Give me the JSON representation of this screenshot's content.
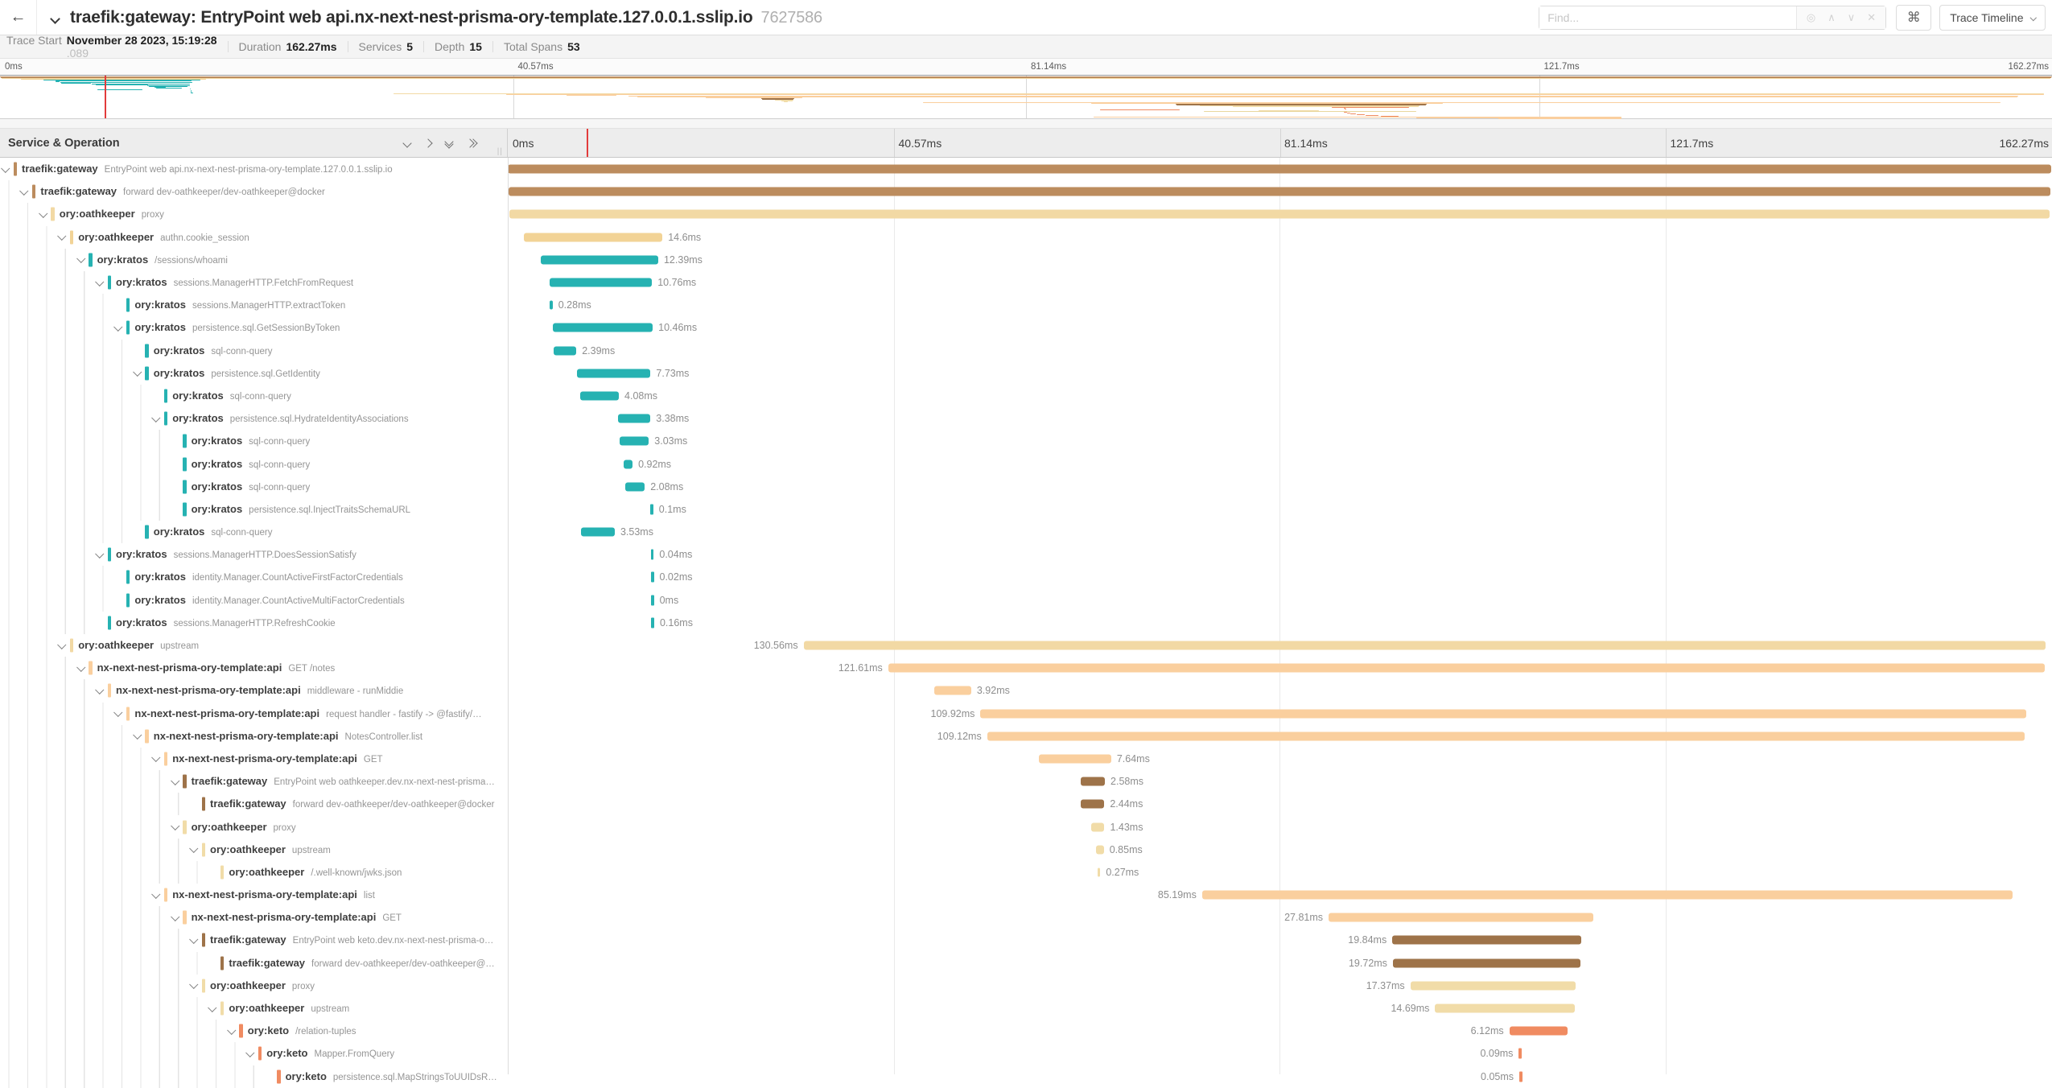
{
  "topbar": {
    "title": "traefik:gateway: EntryPoint web api.nx-next-nest-prisma-ory-template.127.0.0.1.sslip.io",
    "trace_id": "7627586",
    "find_placeholder": "Find...",
    "view_select_label": "Trace Timeline"
  },
  "icons": {
    "back": "←",
    "command": "⌘",
    "find_scope": "◎",
    "find_prev": "∧",
    "find_next": "∨",
    "find_clear": "✕"
  },
  "metabar": {
    "items": [
      {
        "label": "Trace Start",
        "value": "November 28 2023, 15:19:28",
        "suffix": ".089"
      },
      {
        "label": "Duration",
        "value": "162.27ms",
        "suffix": ""
      },
      {
        "label": "Services",
        "value": "5",
        "suffix": ""
      },
      {
        "label": "Depth",
        "value": "15",
        "suffix": ""
      },
      {
        "label": "Total Spans",
        "value": "53",
        "suffix": ""
      }
    ]
  },
  "table": {
    "header_left": "Service & Operation"
  },
  "timeline": {
    "ticks": [
      "0ms",
      "40.57ms",
      "81.14ms",
      "121.7ms",
      "162.27ms"
    ],
    "duration_ms": 162.27,
    "cursor_pct": 5.1
  },
  "colors": {
    "traefik_light": "#BC8C5E",
    "traefik_dark": "#9E7349",
    "oathkeeper": "#F1DCA8",
    "oathkeeper_deep": "#F2D396",
    "kratos": "#26B2B2",
    "api": "#FACF9E",
    "keto": "#F08B61",
    "cursor_red": "#E23B3B"
  },
  "spans": [
    {
      "service": "traefik:gateway",
      "operation": "EntryPoint web api.nx-next-nest-prisma-ory-template.127.0.0.1.sslip.io",
      "depth": 0,
      "has_children": true,
      "color": "#BC8C5E",
      "start_ms": 0,
      "duration_ms": 162.27,
      "duration_label": "",
      "label_side": "none"
    },
    {
      "service": "traefik:gateway",
      "operation": "forward dev-oathkeeper/dev-oathkeeper@docker",
      "depth": 1,
      "has_children": true,
      "color": "#BC8C5E",
      "start_ms": 0.06,
      "duration_ms": 162.15,
      "duration_label": "",
      "label_side": "none"
    },
    {
      "service": "ory:oathkeeper",
      "operation": "proxy",
      "depth": 2,
      "has_children": true,
      "color": "#F2D9A4",
      "start_ms": 0.14,
      "duration_ms": 162.0,
      "duration_label": "",
      "label_side": "none"
    },
    {
      "service": "ory:oathkeeper",
      "operation": "authn.cookie_session",
      "depth": 3,
      "has_children": true,
      "color": "#F2D396",
      "start_ms": 1.66,
      "duration_ms": 14.6,
      "duration_label": "14.6ms",
      "label_side": "right"
    },
    {
      "service": "ory:kratos",
      "operation": "/sessions/whoami",
      "depth": 4,
      "has_children": true,
      "color": "#26B2B2",
      "start_ms": 3.43,
      "duration_ms": 12.39,
      "duration_label": "12.39ms",
      "label_side": "right"
    },
    {
      "service": "ory:kratos",
      "operation": "sessions.ManagerHTTP.FetchFromRequest",
      "depth": 5,
      "has_children": true,
      "color": "#26B2B2",
      "start_ms": 4.4,
      "duration_ms": 10.76,
      "duration_label": "10.76ms",
      "label_side": "right"
    },
    {
      "service": "ory:kratos",
      "operation": "sessions.ManagerHTTP.extractToken",
      "depth": 6,
      "has_children": false,
      "color": "#26B2B2",
      "start_ms": 4.42,
      "duration_ms": 0.28,
      "duration_label": "0.28ms",
      "label_side": "right"
    },
    {
      "service": "ory:kratos",
      "operation": "persistence.sql.GetSessionByToken",
      "depth": 6,
      "has_children": true,
      "color": "#26B2B2",
      "start_ms": 4.78,
      "duration_ms": 10.46,
      "duration_label": "10.46ms",
      "label_side": "right"
    },
    {
      "service": "ory:kratos",
      "operation": "sql-conn-query",
      "depth": 7,
      "has_children": false,
      "color": "#26B2B2",
      "start_ms": 4.82,
      "duration_ms": 2.39,
      "duration_label": "2.39ms",
      "label_side": "right"
    },
    {
      "service": "ory:kratos",
      "operation": "persistence.sql.GetIdentity",
      "depth": 7,
      "has_children": true,
      "color": "#26B2B2",
      "start_ms": 7.28,
      "duration_ms": 7.73,
      "duration_label": "7.73ms",
      "label_side": "right"
    },
    {
      "service": "ory:kratos",
      "operation": "sql-conn-query",
      "depth": 8,
      "has_children": false,
      "color": "#26B2B2",
      "start_ms": 7.6,
      "duration_ms": 4.08,
      "duration_label": "4.08ms",
      "label_side": "right"
    },
    {
      "service": "ory:kratos",
      "operation": "persistence.sql.HydrateIdentityAssociations",
      "depth": 8,
      "has_children": true,
      "color": "#26B2B2",
      "start_ms": 11.62,
      "duration_ms": 3.38,
      "duration_label": "3.38ms",
      "label_side": "right"
    },
    {
      "service": "ory:kratos",
      "operation": "sql-conn-query",
      "depth": 9,
      "has_children": false,
      "color": "#26B2B2",
      "start_ms": 11.8,
      "duration_ms": 3.03,
      "duration_label": "3.03ms",
      "label_side": "right"
    },
    {
      "service": "ory:kratos",
      "operation": "sql-conn-query",
      "depth": 9,
      "has_children": false,
      "color": "#26B2B2",
      "start_ms": 12.2,
      "duration_ms": 0.92,
      "duration_label": "0.92ms",
      "label_side": "right"
    },
    {
      "service": "ory:kratos",
      "operation": "sql-conn-query",
      "depth": 9,
      "has_children": false,
      "color": "#26B2B2",
      "start_ms": 12.32,
      "duration_ms": 2.08,
      "duration_label": "2.08ms",
      "label_side": "right"
    },
    {
      "service": "ory:kratos",
      "operation": "persistence.sql.InjectTraitsSchemaURL",
      "depth": 9,
      "has_children": false,
      "color": "#26B2B2",
      "start_ms": 15.0,
      "duration_ms": 0.1,
      "duration_label": "0.1ms",
      "label_side": "right"
    },
    {
      "service": "ory:kratos",
      "operation": "sql-conn-query",
      "depth": 7,
      "has_children": false,
      "color": "#26B2B2",
      "start_ms": 7.72,
      "duration_ms": 3.53,
      "duration_label": "3.53ms",
      "label_side": "right"
    },
    {
      "service": "ory:kratos",
      "operation": "sessions.ManagerHTTP.DoesSessionSatisfy",
      "depth": 5,
      "has_children": true,
      "color": "#26B2B2",
      "start_ms": 15.05,
      "duration_ms": 0.04,
      "duration_label": "0.04ms",
      "label_side": "right"
    },
    {
      "service": "ory:kratos",
      "operation": "identity.Manager.CountActiveFirstFactorCredentials",
      "depth": 6,
      "has_children": false,
      "color": "#26B2B2",
      "start_ms": 15.06,
      "duration_ms": 0.02,
      "duration_label": "0.02ms",
      "label_side": "right"
    },
    {
      "service": "ory:kratos",
      "operation": "identity.Manager.CountActiveMultiFactorCredentials",
      "depth": 6,
      "has_children": false,
      "color": "#26B2B2",
      "start_ms": 15.07,
      "duration_ms": 0.0,
      "duration_label": "0ms",
      "label_side": "right"
    },
    {
      "service": "ory:kratos",
      "operation": "sessions.ManagerHTTP.RefreshCookie",
      "depth": 5,
      "has_children": false,
      "color": "#26B2B2",
      "start_ms": 15.1,
      "duration_ms": 0.16,
      "duration_label": "0.16ms",
      "label_side": "right"
    },
    {
      "service": "ory:oathkeeper",
      "operation": "upstream",
      "depth": 3,
      "has_children": true,
      "color": "#F2D9A4",
      "start_ms": 31.1,
      "duration_ms": 130.56,
      "duration_label": "130.56ms",
      "label_side": "left"
    },
    {
      "service": "nx-next-nest-prisma-ory-template:api",
      "operation": "GET /notes",
      "depth": 4,
      "has_children": true,
      "color": "#FACF9E",
      "start_ms": 40.0,
      "duration_ms": 121.61,
      "duration_label": "121.61ms",
      "label_side": "left"
    },
    {
      "service": "nx-next-nest-prisma-ory-template:api",
      "operation": "middleware - runMiddie",
      "depth": 5,
      "has_children": true,
      "color": "#FACF9E",
      "start_ms": 44.8,
      "duration_ms": 3.92,
      "duration_label": "3.92ms",
      "label_side": "right"
    },
    {
      "service": "nx-next-nest-prisma-ory-template:api",
      "operation": "request handler - fastify -> @fastify/…",
      "depth": 6,
      "has_children": true,
      "color": "#FACF9E",
      "start_ms": 49.7,
      "duration_ms": 109.92,
      "duration_label": "109.92ms",
      "label_side": "left"
    },
    {
      "service": "nx-next-nest-prisma-ory-template:api",
      "operation": "NotesController.list",
      "depth": 7,
      "has_children": true,
      "color": "#FACF9E",
      "start_ms": 50.4,
      "duration_ms": 109.12,
      "duration_label": "109.12ms",
      "label_side": "left"
    },
    {
      "service": "nx-next-nest-prisma-ory-template:api",
      "operation": "GET",
      "depth": 8,
      "has_children": true,
      "color": "#FACF9E",
      "start_ms": 55.8,
      "duration_ms": 7.64,
      "duration_label": "7.64ms",
      "label_side": "right"
    },
    {
      "service": "traefik:gateway",
      "operation": "EntryPoint web oathkeeper.dev.nx-next-nest-prisma…",
      "depth": 9,
      "has_children": true,
      "color": "#9E7349",
      "start_ms": 60.2,
      "duration_ms": 2.58,
      "duration_label": "2.58ms",
      "label_side": "right"
    },
    {
      "service": "traefik:gateway",
      "operation": "forward dev-oathkeeper/dev-oathkeeper@docker",
      "depth": 10,
      "has_children": false,
      "color": "#9E7349",
      "start_ms": 60.28,
      "duration_ms": 2.44,
      "duration_label": "2.44ms",
      "label_side": "right"
    },
    {
      "service": "ory:oathkeeper",
      "operation": "proxy",
      "depth": 9,
      "has_children": true,
      "color": "#F1DCA8",
      "start_ms": 61.3,
      "duration_ms": 1.43,
      "duration_label": "1.43ms",
      "label_side": "right"
    },
    {
      "service": "ory:oathkeeper",
      "operation": "upstream",
      "depth": 10,
      "has_children": true,
      "color": "#F1DCA8",
      "start_ms": 61.82,
      "duration_ms": 0.85,
      "duration_label": "0.85ms",
      "label_side": "right"
    },
    {
      "service": "ory:oathkeeper",
      "operation": "/.well-known/jwks.json",
      "depth": 11,
      "has_children": false,
      "color": "#F1DCA8",
      "start_ms": 62.0,
      "duration_ms": 0.27,
      "duration_label": "0.27ms",
      "label_side": "right"
    },
    {
      "service": "nx-next-nest-prisma-ory-template:api",
      "operation": "list",
      "depth": 8,
      "has_children": true,
      "color": "#FACF9E",
      "start_ms": 73.0,
      "duration_ms": 85.19,
      "duration_label": "85.19ms",
      "label_side": "left"
    },
    {
      "service": "nx-next-nest-prisma-ory-template:api",
      "operation": "GET",
      "depth": 9,
      "has_children": true,
      "color": "#FACF9E",
      "start_ms": 86.3,
      "duration_ms": 27.81,
      "duration_label": "27.81ms",
      "label_side": "left"
    },
    {
      "service": "traefik:gateway",
      "operation": "EntryPoint web keto.dev.nx-next-nest-prisma-o…",
      "depth": 10,
      "has_children": true,
      "color": "#9E7349",
      "start_ms": 93.0,
      "duration_ms": 19.84,
      "duration_label": "19.84ms",
      "label_side": "left"
    },
    {
      "service": "traefik:gateway",
      "operation": "forward dev-oathkeeper/dev-oathkeeper@…",
      "depth": 11,
      "has_children": false,
      "color": "#9E7349",
      "start_ms": 93.06,
      "duration_ms": 19.72,
      "duration_label": "19.72ms",
      "label_side": "left"
    },
    {
      "service": "ory:oathkeeper",
      "operation": "proxy",
      "depth": 10,
      "has_children": true,
      "color": "#F1DCA8",
      "start_ms": 94.9,
      "duration_ms": 17.37,
      "duration_label": "17.37ms",
      "label_side": "left"
    },
    {
      "service": "ory:oathkeeper",
      "operation": "upstream",
      "depth": 11,
      "has_children": true,
      "color": "#F1DCA8",
      "start_ms": 97.5,
      "duration_ms": 14.69,
      "duration_label": "14.69ms",
      "label_side": "left"
    },
    {
      "service": "ory:keto",
      "operation": "/relation-tuples",
      "depth": 12,
      "has_children": true,
      "color": "#F08B61",
      "start_ms": 105.3,
      "duration_ms": 6.12,
      "duration_label": "6.12ms",
      "label_side": "left"
    },
    {
      "service": "ory:keto",
      "operation": "Mapper.FromQuery",
      "depth": 13,
      "has_children": true,
      "color": "#F08B61",
      "start_ms": 106.3,
      "duration_ms": 0.09,
      "duration_label": "0.09ms",
      "label_side": "left"
    },
    {
      "service": "ory:keto",
      "operation": "persistence.sql.MapStringsToUUIDsR…",
      "depth": 14,
      "has_children": false,
      "color": "#F08B61",
      "start_ms": 106.35,
      "duration_ms": 0.05,
      "duration_label": "0.05ms",
      "label_side": "left"
    }
  ],
  "minimap_extra": [
    {
      "start_ms": 87.0,
      "duration_ms": 6.3,
      "color": "#F08B61"
    },
    {
      "start_ms": 99.5,
      "duration_ms": 4.8,
      "color": "#F1DCA8"
    },
    {
      "start_ms": 95.2,
      "duration_ms": 16.8,
      "color": "#E9D79E"
    },
    {
      "start_ms": 106.3,
      "duration_ms": 0.2,
      "color": "#F08B61"
    },
    {
      "start_ms": 106.5,
      "duration_ms": 0.3,
      "color": "#F08B61"
    },
    {
      "start_ms": 106.8,
      "duration_ms": 0.4,
      "color": "#F08B61"
    },
    {
      "start_ms": 107.3,
      "duration_ms": 0.6,
      "color": "#F08B61"
    },
    {
      "start_ms": 108.0,
      "duration_ms": 1.0,
      "color": "#F08B61"
    },
    {
      "start_ms": 109.2,
      "duration_ms": 1.4,
      "color": "#F08B61"
    },
    {
      "start_ms": 86.5,
      "duration_ms": 41.7,
      "color": "#FACF9E"
    },
    {
      "start_ms": 112.0,
      "duration_ms": 16.2,
      "color": "#FACF9E"
    },
    {
      "start_ms": 118.5,
      "duration_ms": 9.7,
      "color": "#FACF9E"
    }
  ]
}
